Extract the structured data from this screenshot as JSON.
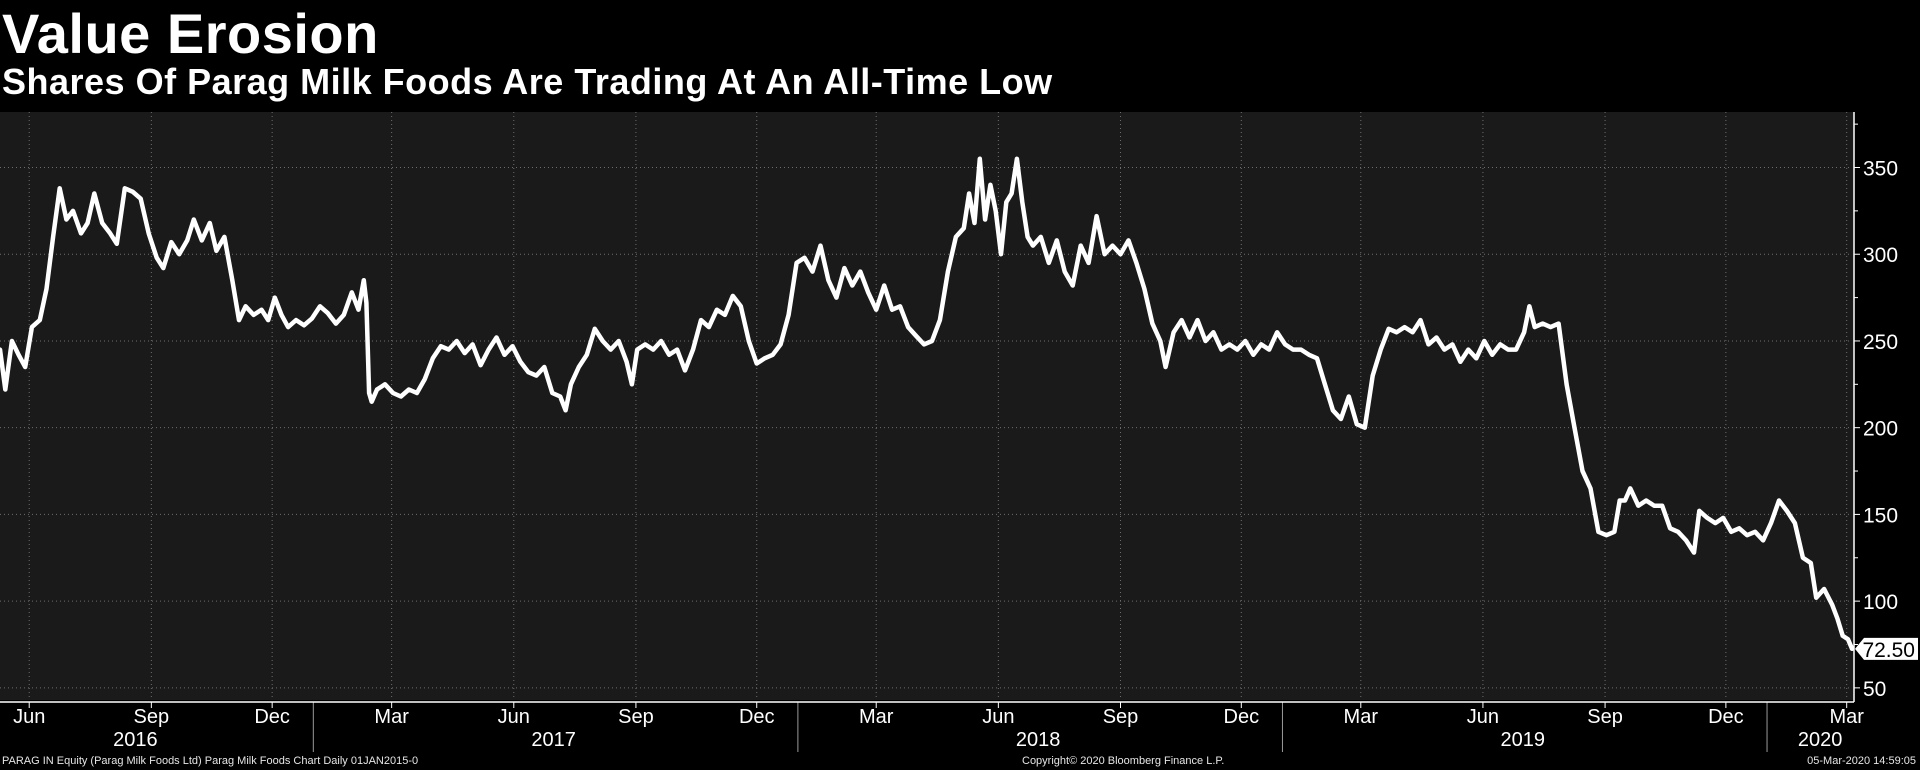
{
  "header": {
    "title": "Value Erosion",
    "subtitle": "Shares Of Parag Milk Foods Are Trading At An All-Time Low"
  },
  "footer": {
    "left": "PARAG IN Equity (Parag Milk Foods Ltd) Parag Milk Foods Chart  Daily 01JAN2015-0",
    "center": "Copyright© 2020 Bloomberg Finance L.P.",
    "right": "05-Mar-2020 14:59:05"
  },
  "colors": {
    "background": "#000000",
    "plot_background": "#1a1a1a",
    "line": "#ffffff",
    "grid": "#6e6e6e"
  },
  "chart_data": {
    "type": "line",
    "title": "Value Erosion",
    "subtitle": "Shares Of Parag Milk Foods Are Trading At An All-Time Low",
    "xlabel": "",
    "ylabel": "",
    "x_range": [
      "2016-05-10",
      "2020-03-05"
    ],
    "ylim": [
      43,
      382
    ],
    "yticks": [
      50,
      100,
      150,
      200,
      250,
      300,
      350
    ],
    "grid": true,
    "axis_side": "right",
    "last_value_label": "72.50",
    "xticks": [
      {
        "label": "Jun",
        "date": "2016-06-01"
      },
      {
        "label": "Sep",
        "date": "2016-09-01"
      },
      {
        "label": "Dec",
        "date": "2016-12-01"
      },
      {
        "label": "Mar",
        "date": "2017-03-01"
      },
      {
        "label": "Jun",
        "date": "2017-06-01"
      },
      {
        "label": "Sep",
        "date": "2017-09-01"
      },
      {
        "label": "Dec",
        "date": "2017-12-01"
      },
      {
        "label": "Mar",
        "date": "2018-03-01"
      },
      {
        "label": "Jun",
        "date": "2018-06-01"
      },
      {
        "label": "Sep",
        "date": "2018-09-01"
      },
      {
        "label": "Dec",
        "date": "2018-12-01"
      },
      {
        "label": "Mar",
        "date": "2019-03-01"
      },
      {
        "label": "Jun",
        "date": "2019-06-01"
      },
      {
        "label": "Sep",
        "date": "2019-09-01"
      },
      {
        "label": "Dec",
        "date": "2019-12-01"
      },
      {
        "label": "Mar",
        "date": "2020-03-01"
      }
    ],
    "years": [
      {
        "label": "2016",
        "date": "2016-08-20",
        "divider": null
      },
      {
        "label": "2017",
        "date": "2017-07-01",
        "divider": "2017-01-01"
      },
      {
        "label": "2018",
        "date": "2018-07-01",
        "divider": "2018-01-01"
      },
      {
        "label": "2019",
        "date": "2019-07-01",
        "divider": "2019-01-01"
      },
      {
        "label": "2020",
        "date": "2020-02-10",
        "divider": "2020-01-01"
      }
    ],
    "series": [
      {
        "name": "PARAG IN Equity",
        "points": [
          [
            "2016-05-10",
            245
          ],
          [
            "2016-05-14",
            222
          ],
          [
            "2016-05-19",
            250
          ],
          [
            "2016-05-24",
            242
          ],
          [
            "2016-05-29",
            235
          ],
          [
            "2016-06-03",
            258
          ],
          [
            "2016-06-09",
            262
          ],
          [
            "2016-06-14",
            280
          ],
          [
            "2016-06-19",
            310
          ],
          [
            "2016-06-24",
            338
          ],
          [
            "2016-06-29",
            320
          ],
          [
            "2016-07-04",
            325
          ],
          [
            "2016-07-10",
            312
          ],
          [
            "2016-07-15",
            318
          ],
          [
            "2016-07-20",
            335
          ],
          [
            "2016-07-26",
            318
          ],
          [
            "2016-08-01",
            312
          ],
          [
            "2016-08-06",
            306
          ],
          [
            "2016-08-12",
            338
          ],
          [
            "2016-08-18",
            336
          ],
          [
            "2016-08-24",
            332
          ],
          [
            "2016-08-30",
            312
          ],
          [
            "2016-09-05",
            298
          ],
          [
            "2016-09-10",
            292
          ],
          [
            "2016-09-16",
            307
          ],
          [
            "2016-09-22",
            300
          ],
          [
            "2016-09-28",
            308
          ],
          [
            "2016-10-03",
            320
          ],
          [
            "2016-10-09",
            308
          ],
          [
            "2016-10-15",
            318
          ],
          [
            "2016-10-20",
            302
          ],
          [
            "2016-10-26",
            310
          ],
          [
            "2016-11-01",
            285
          ],
          [
            "2016-11-06",
            262
          ],
          [
            "2016-11-11",
            270
          ],
          [
            "2016-11-17",
            265
          ],
          [
            "2016-11-23",
            268
          ],
          [
            "2016-11-28",
            262
          ],
          [
            "2016-12-03",
            275
          ],
          [
            "2016-12-08",
            265
          ],
          [
            "2016-12-13",
            258
          ],
          [
            "2016-12-19",
            262
          ],
          [
            "2016-12-25",
            259
          ],
          [
            "2016-12-31",
            263
          ],
          [
            "2017-01-06",
            270
          ],
          [
            "2017-01-12",
            266
          ],
          [
            "2017-01-18",
            260
          ],
          [
            "2017-01-24",
            265
          ],
          [
            "2017-01-30",
            278
          ],
          [
            "2017-02-04",
            268
          ],
          [
            "2017-02-08",
            285
          ],
          [
            "2017-02-10",
            272
          ],
          [
            "2017-02-12",
            220
          ],
          [
            "2017-02-14",
            215
          ],
          [
            "2017-02-18",
            222
          ],
          [
            "2017-02-24",
            225
          ],
          [
            "2017-03-02",
            220
          ],
          [
            "2017-03-08",
            218
          ],
          [
            "2017-03-14",
            222
          ],
          [
            "2017-03-20",
            220
          ],
          [
            "2017-03-26",
            228
          ],
          [
            "2017-04-01",
            240
          ],
          [
            "2017-04-07",
            247
          ],
          [
            "2017-04-13",
            245
          ],
          [
            "2017-04-19",
            250
          ],
          [
            "2017-04-25",
            243
          ],
          [
            "2017-05-01",
            248
          ],
          [
            "2017-05-07",
            236
          ],
          [
            "2017-05-13",
            245
          ],
          [
            "2017-05-19",
            252
          ],
          [
            "2017-05-25",
            242
          ],
          [
            "2017-05-31",
            247
          ],
          [
            "2017-06-06",
            238
          ],
          [
            "2017-06-12",
            232
          ],
          [
            "2017-06-18",
            230
          ],
          [
            "2017-06-24",
            235
          ],
          [
            "2017-06-30",
            220
          ],
          [
            "2017-07-06",
            218
          ],
          [
            "2017-07-10",
            210
          ],
          [
            "2017-07-14",
            225
          ],
          [
            "2017-07-20",
            235
          ],
          [
            "2017-07-26",
            242
          ],
          [
            "2017-08-01",
            257
          ],
          [
            "2017-08-07",
            250
          ],
          [
            "2017-08-13",
            245
          ],
          [
            "2017-08-19",
            250
          ],
          [
            "2017-08-25",
            238
          ],
          [
            "2017-08-29",
            225
          ],
          [
            "2017-09-02",
            245
          ],
          [
            "2017-09-08",
            248
          ],
          [
            "2017-09-14",
            245
          ],
          [
            "2017-09-20",
            250
          ],
          [
            "2017-09-26",
            242
          ],
          [
            "2017-10-02",
            245
          ],
          [
            "2017-10-08",
            233
          ],
          [
            "2017-10-14",
            245
          ],
          [
            "2017-10-20",
            262
          ],
          [
            "2017-10-26",
            258
          ],
          [
            "2017-11-01",
            268
          ],
          [
            "2017-11-07",
            265
          ],
          [
            "2017-11-13",
            276
          ],
          [
            "2017-11-19",
            270
          ],
          [
            "2017-11-25",
            250
          ],
          [
            "2017-12-01",
            237
          ],
          [
            "2017-12-07",
            240
          ],
          [
            "2017-12-13",
            242
          ],
          [
            "2017-12-19",
            248
          ],
          [
            "2017-12-25",
            265
          ],
          [
            "2017-12-31",
            295
          ],
          [
            "2018-01-06",
            298
          ],
          [
            "2018-01-12",
            290
          ],
          [
            "2018-01-18",
            305
          ],
          [
            "2018-01-24",
            285
          ],
          [
            "2018-01-30",
            275
          ],
          [
            "2018-02-05",
            292
          ],
          [
            "2018-02-11",
            282
          ],
          [
            "2018-02-17",
            290
          ],
          [
            "2018-02-23",
            278
          ],
          [
            "2018-03-01",
            268
          ],
          [
            "2018-03-07",
            282
          ],
          [
            "2018-03-13",
            268
          ],
          [
            "2018-03-19",
            270
          ],
          [
            "2018-03-25",
            258
          ],
          [
            "2018-03-31",
            253
          ],
          [
            "2018-04-06",
            248
          ],
          [
            "2018-04-12",
            250
          ],
          [
            "2018-04-18",
            262
          ],
          [
            "2018-04-24",
            290
          ],
          [
            "2018-04-30",
            310
          ],
          [
            "2018-05-06",
            315
          ],
          [
            "2018-05-10",
            335
          ],
          [
            "2018-05-14",
            318
          ],
          [
            "2018-05-18",
            355
          ],
          [
            "2018-05-22",
            320
          ],
          [
            "2018-05-26",
            340
          ],
          [
            "2018-05-30",
            325
          ],
          [
            "2018-06-03",
            300
          ],
          [
            "2018-06-07",
            330
          ],
          [
            "2018-06-11",
            335
          ],
          [
            "2018-06-15",
            355
          ],
          [
            "2018-06-19",
            330
          ],
          [
            "2018-06-23",
            310
          ],
          [
            "2018-06-27",
            305
          ],
          [
            "2018-07-03",
            310
          ],
          [
            "2018-07-09",
            295
          ],
          [
            "2018-07-15",
            308
          ],
          [
            "2018-07-21",
            290
          ],
          [
            "2018-07-27",
            282
          ],
          [
            "2018-08-02",
            305
          ],
          [
            "2018-08-08",
            295
          ],
          [
            "2018-08-14",
            322
          ],
          [
            "2018-08-20",
            300
          ],
          [
            "2018-08-26",
            305
          ],
          [
            "2018-09-01",
            300
          ],
          [
            "2018-09-07",
            308
          ],
          [
            "2018-09-13",
            295
          ],
          [
            "2018-09-19",
            280
          ],
          [
            "2018-09-25",
            260
          ],
          [
            "2018-10-01",
            250
          ],
          [
            "2018-10-05",
            235
          ],
          [
            "2018-10-11",
            255
          ],
          [
            "2018-10-17",
            262
          ],
          [
            "2018-10-23",
            252
          ],
          [
            "2018-10-29",
            262
          ],
          [
            "2018-11-04",
            250
          ],
          [
            "2018-11-10",
            255
          ],
          [
            "2018-11-16",
            245
          ],
          [
            "2018-11-22",
            248
          ],
          [
            "2018-11-28",
            245
          ],
          [
            "2018-12-04",
            250
          ],
          [
            "2018-12-10",
            242
          ],
          [
            "2018-12-16",
            248
          ],
          [
            "2018-12-22",
            245
          ],
          [
            "2018-12-28",
            255
          ],
          [
            "2019-01-03",
            248
          ],
          [
            "2019-01-09",
            245
          ],
          [
            "2019-01-15",
            245
          ],
          [
            "2019-01-21",
            242
          ],
          [
            "2019-01-27",
            240
          ],
          [
            "2019-02-02",
            225
          ],
          [
            "2019-02-08",
            210
          ],
          [
            "2019-02-14",
            205
          ],
          [
            "2019-02-20",
            218
          ],
          [
            "2019-02-26",
            202
          ],
          [
            "2019-03-04",
            200
          ],
          [
            "2019-03-10",
            230
          ],
          [
            "2019-03-16",
            245
          ],
          [
            "2019-03-22",
            257
          ],
          [
            "2019-03-28",
            255
          ],
          [
            "2019-04-03",
            258
          ],
          [
            "2019-04-09",
            255
          ],
          [
            "2019-04-15",
            262
          ],
          [
            "2019-04-21",
            248
          ],
          [
            "2019-04-27",
            252
          ],
          [
            "2019-05-03",
            245
          ],
          [
            "2019-05-09",
            248
          ],
          [
            "2019-05-15",
            238
          ],
          [
            "2019-05-21",
            245
          ],
          [
            "2019-05-27",
            240
          ],
          [
            "2019-06-02",
            250
          ],
          [
            "2019-06-08",
            242
          ],
          [
            "2019-06-14",
            248
          ],
          [
            "2019-06-20",
            245
          ],
          [
            "2019-06-26",
            245
          ],
          [
            "2019-07-02",
            255
          ],
          [
            "2019-07-06",
            270
          ],
          [
            "2019-07-10",
            258
          ],
          [
            "2019-07-16",
            260
          ],
          [
            "2019-07-22",
            258
          ],
          [
            "2019-07-28",
            260
          ],
          [
            "2019-08-03",
            225
          ],
          [
            "2019-08-09",
            200
          ],
          [
            "2019-08-15",
            175
          ],
          [
            "2019-08-21",
            165
          ],
          [
            "2019-08-27",
            140
          ],
          [
            "2019-09-02",
            138
          ],
          [
            "2019-09-08",
            140
          ],
          [
            "2019-09-12",
            158
          ],
          [
            "2019-09-16",
            158
          ],
          [
            "2019-09-20",
            165
          ],
          [
            "2019-09-26",
            155
          ],
          [
            "2019-10-02",
            158
          ],
          [
            "2019-10-08",
            155
          ],
          [
            "2019-10-14",
            155
          ],
          [
            "2019-10-20",
            142
          ],
          [
            "2019-10-26",
            140
          ],
          [
            "2019-11-01",
            135
          ],
          [
            "2019-11-07",
            128
          ],
          [
            "2019-11-11",
            152
          ],
          [
            "2019-11-17",
            148
          ],
          [
            "2019-11-23",
            145
          ],
          [
            "2019-11-29",
            148
          ],
          [
            "2019-12-05",
            140
          ],
          [
            "2019-12-11",
            142
          ],
          [
            "2019-12-17",
            138
          ],
          [
            "2019-12-23",
            140
          ],
          [
            "2019-12-29",
            135
          ],
          [
            "2020-01-04",
            145
          ],
          [
            "2020-01-10",
            158
          ],
          [
            "2020-01-16",
            152
          ],
          [
            "2020-01-22",
            145
          ],
          [
            "2020-01-28",
            125
          ],
          [
            "2020-02-03",
            122
          ],
          [
            "2020-02-07",
            102
          ],
          [
            "2020-02-13",
            107
          ],
          [
            "2020-02-19",
            98
          ],
          [
            "2020-02-23",
            90
          ],
          [
            "2020-02-27",
            80
          ],
          [
            "2020-03-02",
            78
          ],
          [
            "2020-03-05",
            72.5
          ]
        ]
      }
    ]
  }
}
